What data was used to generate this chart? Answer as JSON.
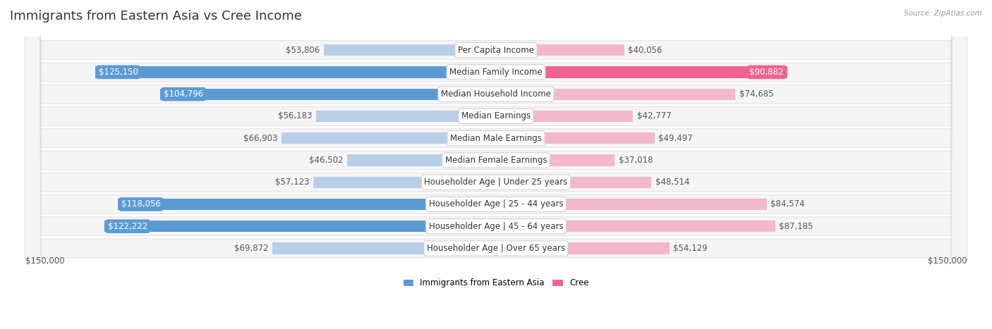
{
  "title": "Immigrants from Eastern Asia vs Cree Income",
  "source": "Source: ZipAtlas.com",
  "categories": [
    "Per Capita Income",
    "Median Family Income",
    "Median Household Income",
    "Median Earnings",
    "Median Male Earnings",
    "Median Female Earnings",
    "Householder Age | Under 25 years",
    "Householder Age | 25 - 44 years",
    "Householder Age | 45 - 64 years",
    "Householder Age | Over 65 years"
  ],
  "left_values": [
    53806,
    125150,
    104796,
    56183,
    66903,
    46502,
    57123,
    118056,
    122222,
    69872
  ],
  "right_values": [
    40056,
    90882,
    74685,
    42777,
    49497,
    37018,
    48514,
    84574,
    87185,
    54129
  ],
  "left_labels": [
    "$53,806",
    "$125,150",
    "$104,796",
    "$56,183",
    "$66,903",
    "$46,502",
    "$57,123",
    "$118,056",
    "$122,222",
    "$69,872"
  ],
  "right_labels": [
    "$40,056",
    "$90,882",
    "$74,685",
    "$42,777",
    "$49,497",
    "$37,018",
    "$48,514",
    "$84,574",
    "$87,185",
    "$54,129"
  ],
  "max_value": 150000,
  "left_color_strong": "#5b9bd5",
  "left_color_light": "#b8cfe8",
  "right_color_strong": "#f06292",
  "right_color_light": "#f4b8cb",
  "row_bg_color": "#f5f5f5",
  "row_border_color": "#dddddd",
  "background_color": "#ffffff",
  "legend_left": "Immigrants from Eastern Asia",
  "legend_right": "Cree",
  "xlabel_left": "$150,000",
  "xlabel_right": "$150,000",
  "threshold_strong": 90000,
  "title_fontsize": 13,
  "label_fontsize": 8.5,
  "category_fontsize": 8.5
}
